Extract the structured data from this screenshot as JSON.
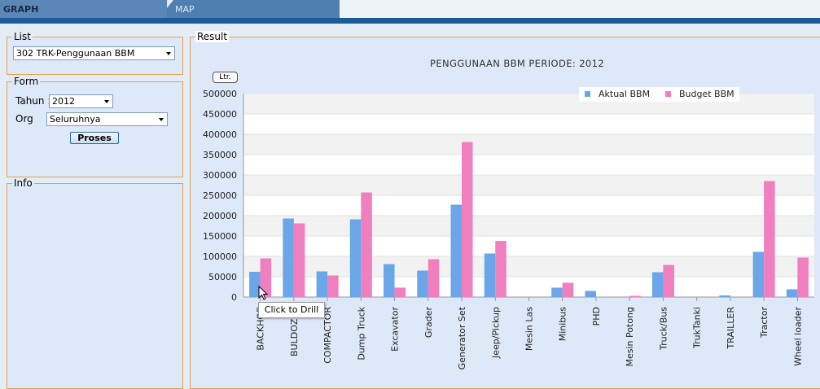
{
  "tabs": {
    "graph": "GRAPH",
    "map": "MAP"
  },
  "list": {
    "legend": "List",
    "selected": "302 TRK-Penggunaan BBM"
  },
  "form": {
    "legend": "Form",
    "tahun_label": "Tahun :",
    "tahun_value": "2012",
    "org_label": "Org",
    "org_value": "Seluruhnya",
    "submit": "Proses"
  },
  "info": {
    "legend": "Info"
  },
  "result": {
    "legend": "Result",
    "unit_button": "Ltr.",
    "tooltip": "Click to Drill"
  },
  "chart_data": {
    "type": "bar",
    "title": "PENGGUNAAN BBM  PERIODE: 2012",
    "categories": [
      "BACKHOE",
      "BULDOZER",
      "COMPACTOR",
      "Dump Truck",
      "Excavator",
      "Grader",
      "Generator Set",
      "Jeep/Pickup",
      "Mesin Las",
      "Minibus",
      "PHD",
      "Mesin Potong",
      "Truck/Bus",
      "TrukTanki",
      "TRAILLER",
      "Tractor",
      "Wheel loader"
    ],
    "series": [
      {
        "name": "Aktual BBM",
        "color": "#6aa6e8",
        "values": [
          62000,
          193000,
          63000,
          191000,
          81000,
          65000,
          227000,
          107000,
          0,
          23000,
          15000,
          0,
          61000,
          0,
          4000,
          111000,
          19000
        ]
      },
      {
        "name": "Budget BBM",
        "color": "#f07fbf",
        "values": [
          95000,
          181000,
          53000,
          257000,
          23000,
          93000,
          381000,
          138000,
          0,
          35000,
          0,
          3000,
          79000,
          0,
          0,
          285000,
          97000
        ]
      }
    ],
    "ylim": [
      0,
      500000
    ],
    "yticks": [
      0,
      50000,
      100000,
      150000,
      200000,
      250000,
      300000,
      350000,
      400000,
      450000,
      500000
    ],
    "legend_position": "top-right",
    "grid": "alternating horizontal bands"
  }
}
